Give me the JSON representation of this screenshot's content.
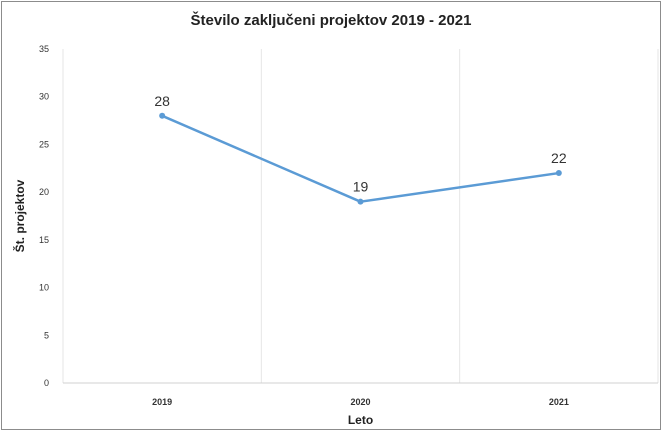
{
  "chart_data": {
    "type": "line",
    "title": "Število zaključeni projektov 2019 - 2021",
    "xlabel": "Leto",
    "ylabel": "Št. projektov",
    "categories": [
      "2019",
      "2020",
      "2021"
    ],
    "values": [
      28,
      19,
      22
    ],
    "data_labels": [
      "28",
      "19",
      "22"
    ],
    "ylim": [
      0,
      35
    ],
    "yticks": [
      0,
      5,
      10,
      15,
      20,
      25,
      30,
      35
    ],
    "ytick_labels": [
      "0",
      "5",
      "10",
      "15",
      "20",
      "25",
      "30",
      "35"
    ],
    "grid": "vertical",
    "legend": "none",
    "line_color": "#5b9bd5"
  }
}
